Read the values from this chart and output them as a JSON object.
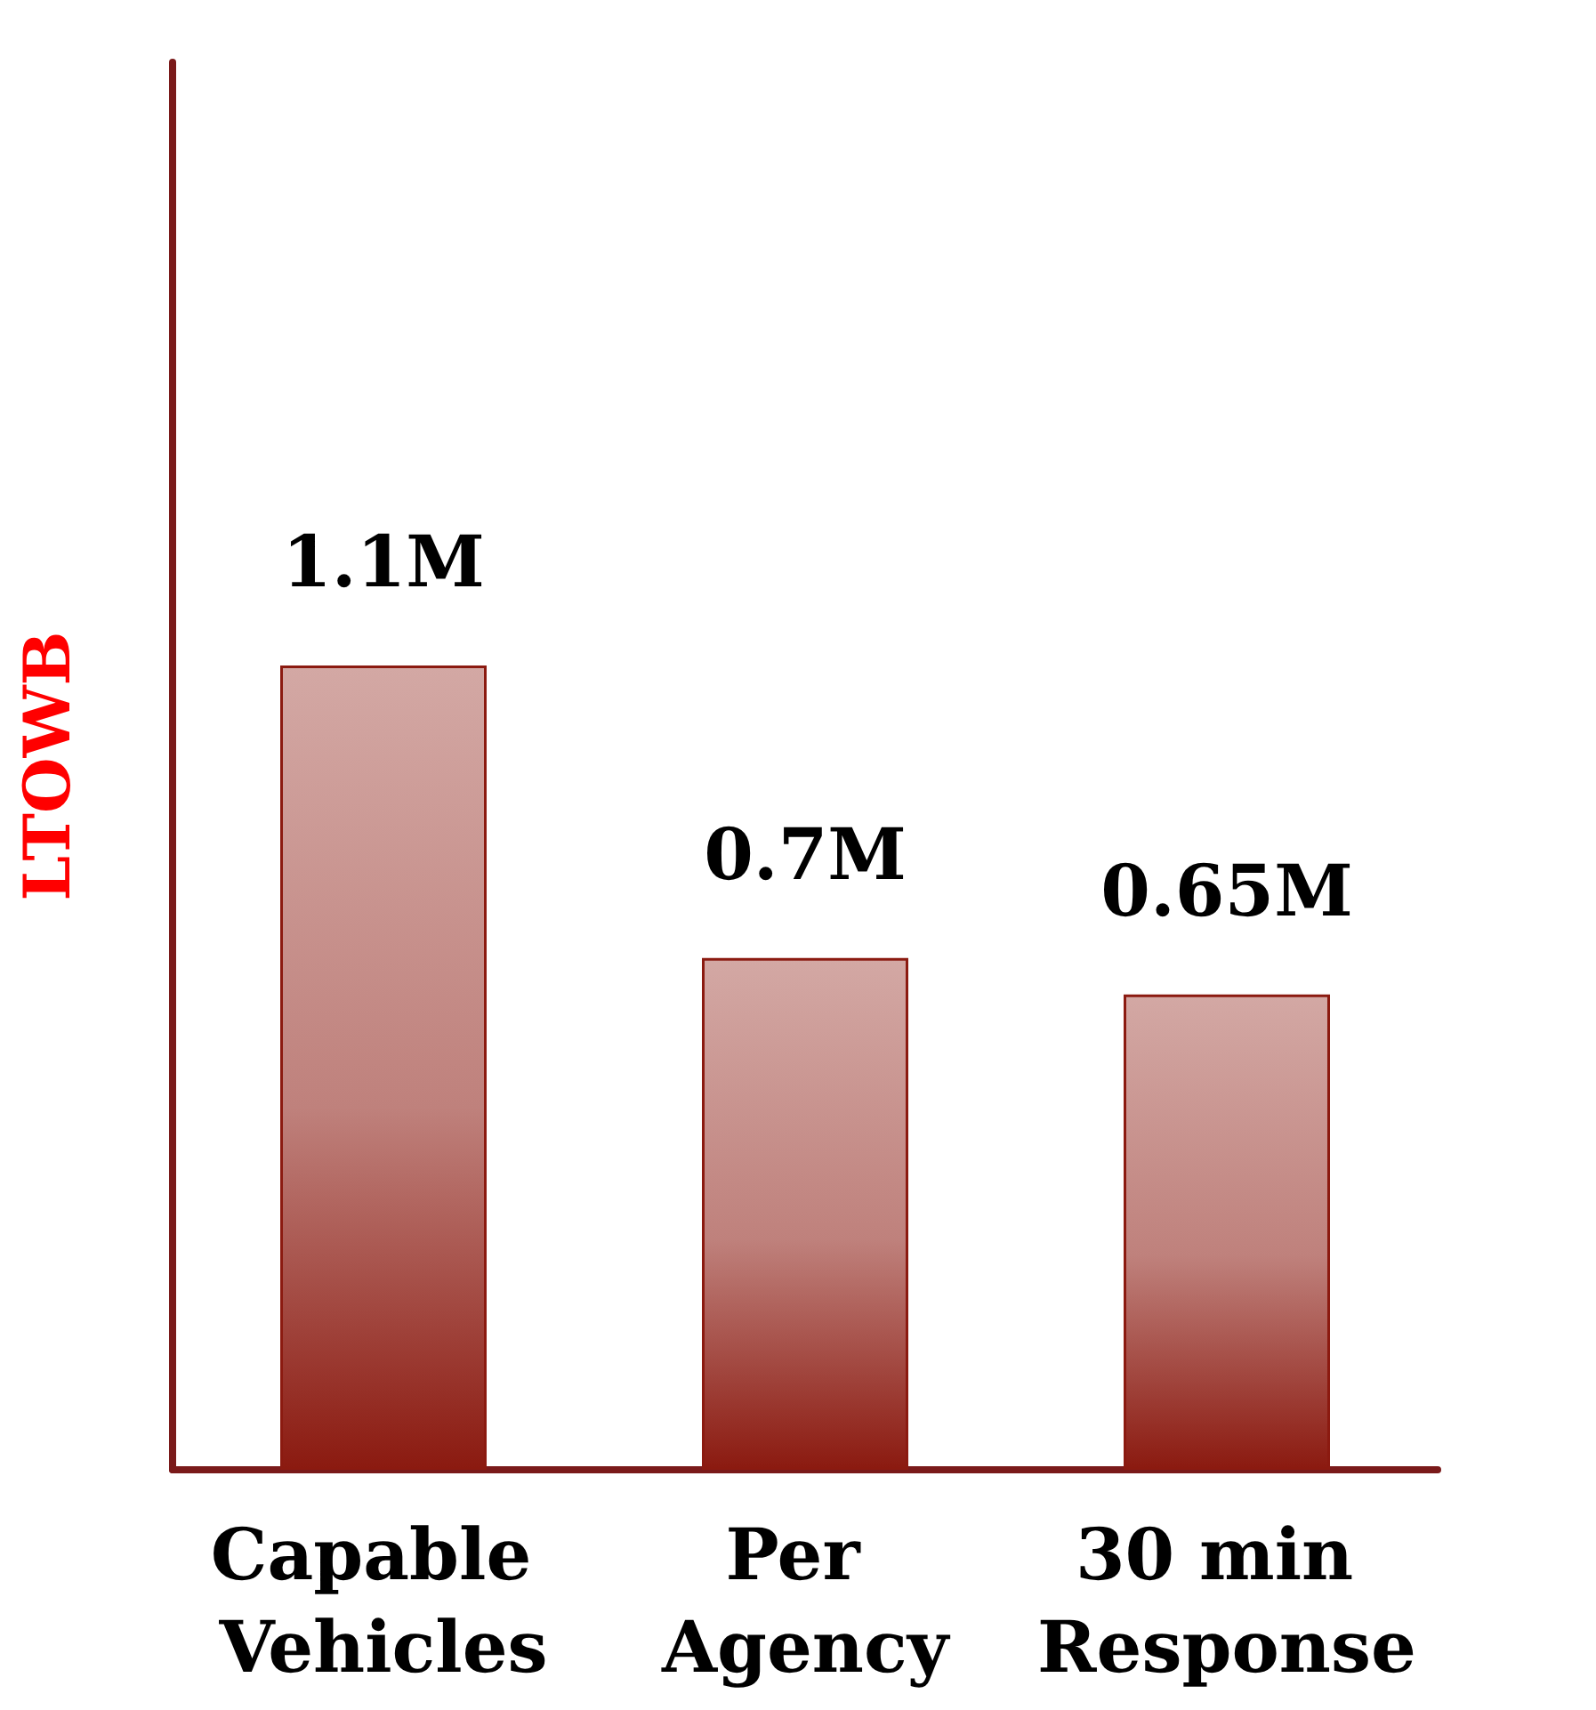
{
  "chart_data": {
    "type": "bar",
    "ylabel": "LTOWB",
    "categories": [
      "Capable Vehicles",
      "Per Agency",
      "30 min Response"
    ],
    "values": [
      1.1,
      0.7,
      0.65
    ],
    "value_labels": [
      "1.1M",
      "0.7M",
      "0.65M"
    ],
    "color": "#8b1a10",
    "tick_labels": "x",
    "grid": false
  }
}
